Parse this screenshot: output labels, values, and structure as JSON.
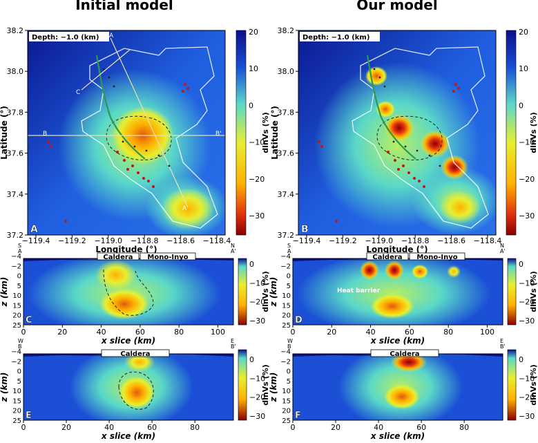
{
  "titles": {
    "left": "Initial model",
    "right": "Our model"
  },
  "map_panels": {
    "depth_label": "Depth: −1.0 (km)",
    "xlabel": "Longitude (°)",
    "ylabel": "Latitude (°)",
    "xticks": [
      "−119.4",
      "−119.2",
      "−119.0",
      "−118.8",
      "−118.6",
      "−118.4"
    ],
    "yticks": [
      "38.2",
      "38.0",
      "37.8",
      "37.6",
      "37.4",
      "37.2"
    ],
    "profile_labels": {
      "A": "A",
      "A_prime": "A'",
      "B": "B",
      "B_prime": "B'",
      "C": "C",
      "C_prime": "C'"
    },
    "colorbar": {
      "label": "dlnVs (%)",
      "ticks": [
        "20",
        "10",
        "0",
        "−10",
        "−20",
        "−30"
      ]
    }
  },
  "section_panels": {
    "xlabel": "x slice (km)",
    "ylabel": "z (km)",
    "yticks": [
      "−4",
      "−2",
      "0",
      "5",
      "10",
      "15",
      "20",
      "25"
    ],
    "xticks_row1": [
      "0",
      "20",
      "40",
      "60",
      "80",
      "100"
    ],
    "xticks_row2": [
      "0",
      "20",
      "40",
      "60",
      "80"
    ],
    "row1_labels": {
      "caldera": "Caldera",
      "mono_inyo": "Mono-Inyo",
      "start": "S\nA",
      "end": "N\nA'"
    },
    "row2_labels": {
      "caldera": "Caldera",
      "start": "W\nB",
      "end": "E\nB'"
    },
    "heat_barrier": "Heat barrier",
    "colorbar": {
      "label": "dlnVs (%)",
      "ticks": [
        "0",
        "−10",
        "−20",
        "−30"
      ]
    }
  },
  "panel_letters": [
    "A",
    "B",
    "C",
    "D",
    "E",
    "F"
  ],
  "colors": {
    "min": "#8b0000",
    "low": "#ffb000",
    "mid": "#e8ee30",
    "zero": "#5ad8c8",
    "high": "#1a4fd6",
    "max": "#0b0f8a"
  },
  "chart_data": [
    {
      "panel": "A",
      "type": "heatmap",
      "title": "Initial model",
      "xlabel": "Longitude (°)",
      "ylabel": "Latitude (°)",
      "xlim": [
        -119.5,
        -118.35
      ],
      "ylim": [
        37.2,
        38.2
      ],
      "colorbar_range": [
        -35,
        20
      ],
      "anomalies": [
        {
          "lon": -118.85,
          "lat": 37.67,
          "dlnVs": -20
        },
        {
          "lon": -118.62,
          "lat": 37.35,
          "dlnVs": -12
        }
      ]
    },
    {
      "panel": "B",
      "type": "heatmap",
      "title": "Our model",
      "xlabel": "Longitude (°)",
      "ylabel": "Latitude (°)",
      "xlim": [
        -119.5,
        -118.35
      ],
      "ylim": [
        37.2,
        38.2
      ],
      "colorbar_range": [
        -35,
        20
      ],
      "anomalies": [
        {
          "lon": -118.95,
          "lat": 37.72,
          "dlnVs": -30
        },
        {
          "lon": -118.8,
          "lat": 37.64,
          "dlnVs": -30
        },
        {
          "lon": -118.88,
          "lat": 37.8,
          "dlnVs": -15
        },
        {
          "lon": -118.62,
          "lat": 37.5,
          "dlnVs": -25
        },
        {
          "lon": -119.05,
          "lat": 37.96,
          "dlnVs": -15
        }
      ]
    },
    {
      "panel": "C",
      "type": "heatmap",
      "xlabel": "x slice (km)",
      "ylabel": "z (km)",
      "xlim": [
        0,
        108
      ],
      "ylim": [
        -4,
        25
      ],
      "colorbar_range": [
        -35,
        5
      ],
      "anomalies": [
        {
          "x": 48,
          "z": 2,
          "dlnVs": -22
        },
        {
          "x": 48,
          "z": 13,
          "dlnVs": -22
        }
      ]
    },
    {
      "panel": "D",
      "type": "heatmap",
      "xlabel": "x slice (km)",
      "ylabel": "z (km)",
      "xlim": [
        0,
        108
      ],
      "ylim": [
        -4,
        25
      ],
      "colorbar_range": [
        -35,
        5
      ],
      "anomalies": [
        {
          "x": 38,
          "z": -0.5,
          "dlnVs": -35
        },
        {
          "x": 48,
          "z": -0.5,
          "dlnVs": -35
        },
        {
          "x": 63,
          "z": 0,
          "dlnVs": -15
        },
        {
          "x": 78,
          "z": 0,
          "dlnVs": -12
        },
        {
          "x": 47,
          "z": 15,
          "dlnVs": -22
        }
      ]
    },
    {
      "panel": "E",
      "type": "heatmap",
      "xlabel": "x slice (km)",
      "ylabel": "z (km)",
      "xlim": [
        0,
        98
      ],
      "ylim": [
        -4,
        25
      ],
      "colorbar_range": [
        -35,
        5
      ],
      "anomalies": [
        {
          "x": 55,
          "z": -1,
          "dlnVs": -20
        },
        {
          "x": 54,
          "z": 12,
          "dlnVs": -22
        }
      ]
    },
    {
      "panel": "F",
      "type": "heatmap",
      "xlabel": "x slice (km)",
      "ylabel": "z (km)",
      "xlim": [
        0,
        98
      ],
      "ylim": [
        -4,
        25
      ],
      "colorbar_range": [
        -35,
        5
      ],
      "anomalies": [
        {
          "x": 55,
          "z": -1,
          "dlnVs": -28
        },
        {
          "x": 49,
          "z": 14,
          "dlnVs": -24
        }
      ]
    }
  ]
}
